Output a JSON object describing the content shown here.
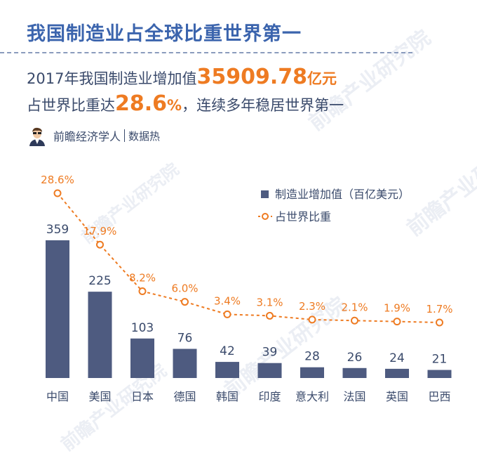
{
  "header": {
    "title": "我国制造业占全球比重世界第一",
    "line1_prefix": "2017年我国制造业增加值",
    "line1_value": "35909.78",
    "line1_unit": "亿元",
    "line2_prefix": "占世界比重达",
    "line2_value": "28.6",
    "line2_unit": "%",
    "line2_suffix": "，连续多年稳居世界第一"
  },
  "source": {
    "brand": "前瞻经济学人",
    "sub": "数据热"
  },
  "watermark": "前瞻产业研究院",
  "colors": {
    "bar": "#4e5b80",
    "line": "#ee7b22",
    "title": "#3b64ad",
    "text": "#3a4a6b"
  },
  "chart_data": {
    "type": "bar",
    "categories": [
      "中国",
      "美国",
      "日本",
      "德国",
      "韩国",
      "印度",
      "意大利",
      "法国",
      "英国",
      "巴西"
    ],
    "series": [
      {
        "name": "制造业增加值（百亿美元）",
        "type": "bar",
        "values": [
          359,
          225,
          103,
          76,
          42,
          39,
          28,
          26,
          24,
          21
        ]
      },
      {
        "name": "占世界比重",
        "type": "line",
        "values": [
          28.6,
          17.9,
          8.2,
          6.0,
          3.4,
          3.1,
          2.3,
          2.1,
          1.9,
          1.7
        ],
        "labels": [
          "28.6%",
          "17.9%",
          "8.2%",
          "6.0%",
          "3.4%",
          "3.1%",
          "2.3%",
          "2.1%",
          "1.9%",
          "1.7%"
        ]
      }
    ],
    "legend_position": "top-right"
  }
}
